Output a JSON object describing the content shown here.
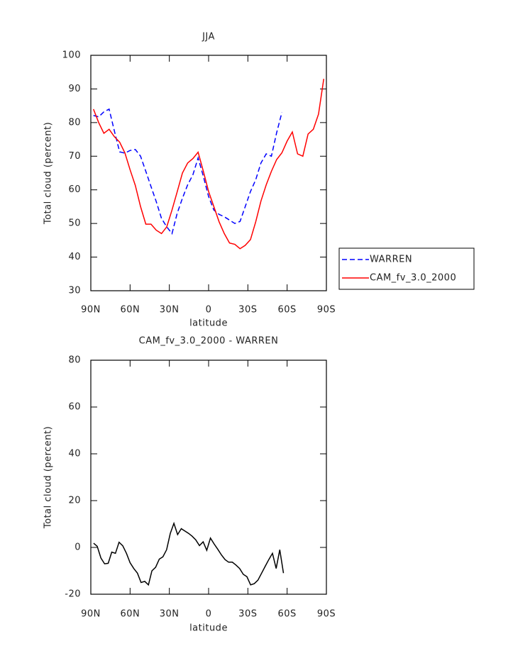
{
  "chart_data": [
    {
      "type": "line",
      "title": "JJA",
      "x_label": "latitude",
      "y_label": "Total cloud (percent)",
      "x": [
        88,
        84,
        80,
        76,
        72,
        68,
        64,
        60,
        56,
        52,
        48,
        44,
        40,
        36,
        32,
        28,
        24,
        20,
        16,
        12,
        8,
        4,
        0,
        -4,
        -8,
        -12,
        -16,
        -20,
        -24,
        -28,
        -32,
        -36,
        -40,
        -44,
        -48,
        -52,
        -56,
        -60,
        -64,
        -68,
        -72,
        -76,
        -80,
        -84,
        -88
      ],
      "series": [
        {
          "name": "WARREN",
          "color": "#0000ff",
          "dashed": true,
          "values": [
            82.1,
            81.7,
            83.2,
            84,
            77.5,
            71.3,
            70.9,
            71.7,
            72,
            70,
            65.5,
            61,
            56.5,
            51.5,
            49,
            47,
            53,
            57.5,
            61.5,
            64.5,
            69.5,
            64,
            58,
            54,
            52.7,
            52,
            51,
            50,
            50.6,
            55,
            59.5,
            63,
            68,
            70.7,
            70,
            77,
            83,
            null,
            null,
            null,
            null,
            null,
            null,
            null,
            null
          ]
        },
        {
          "name": "CAM_fv_3.0_2000",
          "color": "#ff0000",
          "dashed": false,
          "values": [
            84,
            80,
            76.8,
            78,
            75.8,
            74.2,
            71,
            66,
            61.3,
            55,
            49.8,
            49.8,
            48,
            47,
            49,
            54,
            59.4,
            65,
            68,
            69.3,
            71.2,
            65.5,
            59.5,
            55,
            50.5,
            47,
            44.2,
            43.8,
            42.5,
            43.5,
            45.2,
            50.5,
            56.7,
            61.5,
            65.5,
            69,
            71,
            74.5,
            77.2,
            70.7,
            70,
            76.6,
            78,
            82.5,
            93
          ]
        }
      ],
      "xlim": [
        90,
        -90
      ],
      "xticks": [
        {
          "value": 90,
          "label": "90N"
        },
        {
          "value": 60,
          "label": "60N"
        },
        {
          "value": 30,
          "label": "30N"
        },
        0,
        {
          "value": -30,
          "label": "30S"
        },
        {
          "value": -60,
          "label": "60S"
        },
        {
          "value": -90,
          "label": "90S"
        }
      ],
      "ylim": [
        30,
        100
      ],
      "yticks": [
        30,
        40,
        50,
        60,
        70,
        80,
        90,
        100
      ],
      "legend_loc": "right"
    },
    {
      "type": "line",
      "title": "CAM_fv_3.0_2000 - WARREN",
      "x_label": "latitude",
      "y_label": "Total cloud (percent)",
      "x": [
        87.9,
        85.1,
        82.3,
        79.5,
        76.7,
        74.0,
        71.2,
        68.4,
        65.6,
        62.8,
        60.0,
        57.2,
        54.4,
        51.6,
        48.8,
        46.0,
        43.3,
        40.5,
        37.7,
        34.9,
        32.1,
        29.3,
        26.5,
        23.7,
        20.9,
        18.1,
        15.3,
        12.6,
        9.8,
        7.0,
        4.2,
        1.4,
        -1.4,
        -4.2,
        -7.0,
        -9.8,
        -12.6,
        -15.3,
        -18.1,
        -20.9,
        -23.7,
        -26.5,
        -29.3,
        -32.1,
        -34.9,
        -37.7,
        -40.5,
        -43.3,
        -46.0,
        -48.8,
        -51.6,
        -54.4,
        -57.2
      ],
      "color": "#000000",
      "values": [
        1.8,
        0.5,
        -4.5,
        -7,
        -6.8,
        -2,
        -2.5,
        2.2,
        0.7,
        -2.5,
        -6.5,
        -9,
        -11,
        -15,
        -14.5,
        -16,
        -10,
        -8.5,
        -5,
        -4,
        -1,
        6,
        10.3,
        5.5,
        8,
        7,
        6,
        4.8,
        3.2,
        0.8,
        2.4,
        -1.2,
        4,
        1.5,
        -0.8,
        -3.2,
        -5.2,
        -6.3,
        -6.3,
        -7.5,
        -9,
        -11.5,
        -12.5,
        -16,
        -15.5,
        -14,
        -11,
        -8,
        -5.2,
        -2.5,
        -9,
        -1,
        -11
      ],
      "xlim": [
        90,
        -90
      ],
      "xticks": [
        {
          "value": 90,
          "label": "90N"
        },
        {
          "value": 60,
          "label": "60N"
        },
        {
          "value": 30,
          "label": "30N"
        },
        0,
        {
          "value": -30,
          "label": "30S"
        },
        {
          "value": -60,
          "label": "60S"
        },
        {
          "value": -90,
          "label": "90S"
        }
      ],
      "ylim": [
        -20,
        80
      ],
      "yticks": [
        -20,
        0,
        20,
        40,
        60,
        80
      ]
    }
  ]
}
